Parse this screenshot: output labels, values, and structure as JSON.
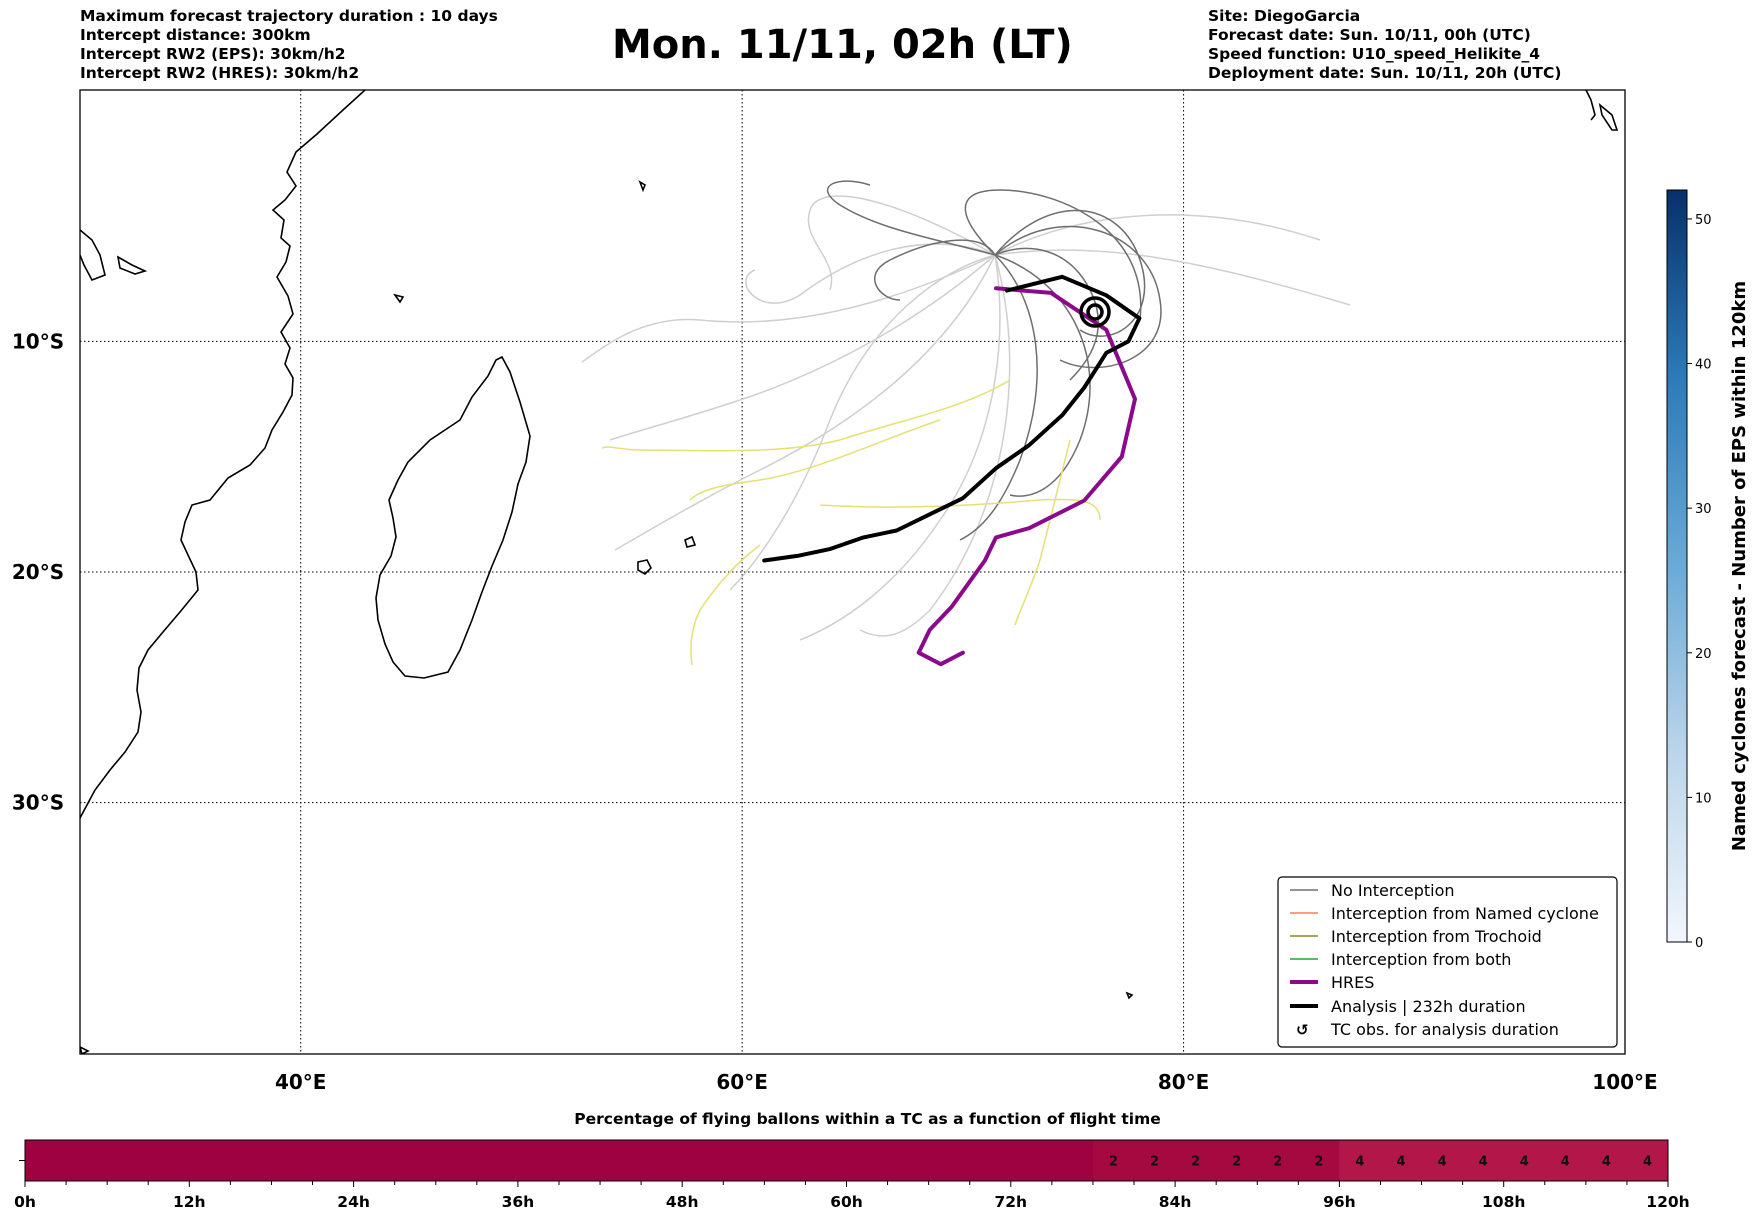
{
  "header": {
    "left_lines": [
      "Maximum forecast trajectory duration : 10 days",
      "Intercept distance: 300km",
      "Intercept RW2 (EPS):  30km/h2",
      "Intercept RW2 (HRES): 30km/h2"
    ],
    "title": "Mon. 11/11, 02h (LT)",
    "right_lines": [
      "Site: DiegoGarcia",
      "Forecast date: Sun. 10/11, 00h (UTC)",
      "Speed function: U10_speed_Helikite_4",
      "Deployment date: Sun. 10/11, 20h (UTC)"
    ]
  },
  "chart_data": [
    {
      "type": "line",
      "title": "Mon. 11/11, 02h (LT)",
      "x_axis": {
        "ticks": [
          40,
          60,
          80,
          100
        ],
        "tick_labels": [
          "40°E",
          "60°E",
          "80°E",
          "100°E"
        ],
        "range": [
          30,
          100
        ]
      },
      "y_axis": {
        "ticks": [
          -10,
          -20,
          -30
        ],
        "tick_labels": [
          "10°S",
          "20°S",
          "30°S"
        ],
        "range": [
          -40.9,
          0.9
        ]
      },
      "grid": true,
      "legend": {
        "placement": "lower-right",
        "entries": [
          {
            "label": "No Interception",
            "color": "#707070"
          },
          {
            "label": "Interception from Named cyclone",
            "color": "#ff7f50"
          },
          {
            "label": "Interception from Trochoid",
            "color": "#8b8b20"
          },
          {
            "label": "Interception from both",
            "color": "#2ca02c"
          },
          {
            "label": "HRES",
            "color": "#8b0a8b"
          },
          {
            "label": "Analysis | 232h duration",
            "color": "#000000"
          },
          {
            "label": "TC obs. for analysis duration",
            "color": "#000000"
          }
        ]
      },
      "series": [
        {
          "name": "HRES",
          "color": "#8b0a8b",
          "points": [
            [
              71.5,
              -7.7
            ],
            [
              74,
              -7.9
            ],
            [
              76.5,
              -9.5
            ],
            [
              77.8,
              -12.5
            ],
            [
              77.2,
              -15
            ],
            [
              75.5,
              -16.9
            ],
            [
              73,
              -18.1
            ],
            [
              71.5,
              -18.5
            ],
            [
              71,
              -19.5
            ],
            [
              69.5,
              -21.5
            ],
            [
              68.5,
              -22.5
            ],
            [
              68,
              -23.5
            ],
            [
              69,
              -24
            ],
            [
              70,
              -23.5
            ]
          ]
        },
        {
          "name": "Analysis | 232h duration",
          "color": "#000000",
          "points": [
            [
              61,
              -19.5
            ],
            [
              62.5,
              -19.3
            ],
            [
              64,
              -19
            ],
            [
              65.5,
              -18.5
            ],
            [
              67,
              -18.2
            ],
            [
              68.5,
              -17.5
            ],
            [
              70,
              -16.8
            ],
            [
              71.5,
              -15.5
            ],
            [
              73,
              -14.5
            ],
            [
              74.5,
              -13.2
            ],
            [
              75.5,
              -12
            ],
            [
              76.5,
              -10.5
            ],
            [
              77.5,
              -10
            ],
            [
              78,
              -9
            ],
            [
              76.5,
              -8
            ],
            [
              74.5,
              -7.2
            ],
            [
              72,
              -7.8
            ]
          ]
        }
      ]
    },
    {
      "type": "heatmap",
      "title": "Percentage of flying ballons within a TC as a function of flight time",
      "x_tick_labels": [
        "0h",
        "12h",
        "24h",
        "36h",
        "48h",
        "60h",
        "72h",
        "84h",
        "96h",
        "108h",
        "120h"
      ],
      "cells": [
        {
          "from_h": 0,
          "to_h": 78,
          "value": 0
        },
        {
          "from_h": 78,
          "to_h": 81,
          "value": 2
        },
        {
          "from_h": 81,
          "to_h": 84,
          "value": 2
        },
        {
          "from_h": 84,
          "to_h": 87,
          "value": 2
        },
        {
          "from_h": 87,
          "to_h": 90,
          "value": 2
        },
        {
          "from_h": 90,
          "to_h": 93,
          "value": 2
        },
        {
          "from_h": 93,
          "to_h": 96,
          "value": 2
        },
        {
          "from_h": 96,
          "to_h": 99,
          "value": 4
        },
        {
          "from_h": 99,
          "to_h": 102,
          "value": 4
        },
        {
          "from_h": 102,
          "to_h": 105,
          "value": 4
        },
        {
          "from_h": 105,
          "to_h": 108,
          "value": 4
        },
        {
          "from_h": 108,
          "to_h": 111,
          "value": 4
        },
        {
          "from_h": 111,
          "to_h": 114,
          "value": 4
        },
        {
          "from_h": 114,
          "to_h": 117,
          "value": 4
        },
        {
          "from_h": 117,
          "to_h": 120,
          "value": 4
        }
      ]
    },
    {
      "type": "colorbar",
      "label": "Named cyclones forecast - Number of EPS within 120km",
      "range": [
        0,
        52
      ],
      "ticks": [
        0,
        10,
        20,
        30,
        40,
        50
      ]
    }
  ]
}
